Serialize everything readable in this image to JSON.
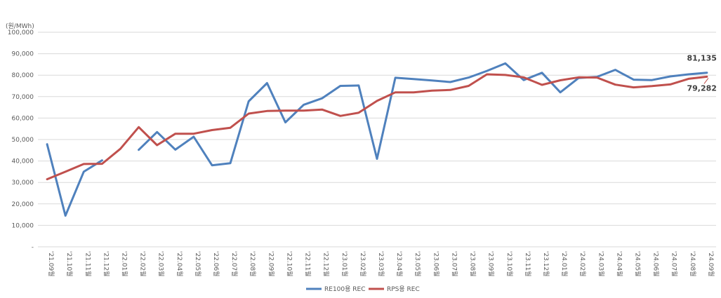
{
  "chart_data": {
    "type": "line",
    "unit_label": "(원/MWh)",
    "x_suffix": "월",
    "x": [
      "'21.09",
      "'21.10",
      "'21.11",
      "'21.12",
      "'22.01",
      "'22.02",
      "'22.03",
      "'22.04",
      "'22.05",
      "'22.06",
      "'22.07",
      "'22.08",
      "'22.09",
      "'22.10",
      "'22.11",
      "'22.12",
      "'23.01",
      "'23.02",
      "'23.03",
      "'23.04",
      "'23.05",
      "'23.06",
      "'23.07",
      "'23.08",
      "'23.09",
      "'23.10",
      "'23.11",
      "'23.12",
      "'24.01",
      "'24.02",
      "'24.03",
      "'24.04",
      "'24.05",
      "'24.06",
      "'24.07",
      "'24.08",
      "'24.09"
    ],
    "ylim": [
      0,
      100000
    ],
    "yticks": [
      "-",
      "10,000",
      "20,000",
      "30,000",
      "40,000",
      "50,000",
      "60,000",
      "70,000",
      "80,000",
      "90,000",
      "100,000"
    ],
    "grid": true,
    "legend_position": "bottom",
    "series": [
      {
        "name": "RE100용 REC",
        "color": "#4f81bd",
        "values": [
          47800,
          14500,
          35000,
          40300,
          null,
          45200,
          53500,
          45300,
          51300,
          38000,
          39000,
          67800,
          76300,
          58000,
          66200,
          69200,
          75000,
          75200,
          41000,
          78800,
          78200,
          77500,
          76800,
          78900,
          82000,
          85500,
          77700,
          81100,
          72000,
          78700,
          79200,
          82500,
          77900,
          77700,
          79400,
          80400,
          81135
        ],
        "end_label": "81,135"
      },
      {
        "name": "RPS용 REC",
        "color": "#c0504d",
        "values": [
          31500,
          35000,
          38600,
          38700,
          45700,
          55800,
          47400,
          52700,
          52700,
          54400,
          55500,
          62100,
          63300,
          63500,
          63500,
          64000,
          61000,
          62500,
          68000,
          72000,
          72000,
          72800,
          73100,
          75000,
          80400,
          80100,
          79000,
          75500,
          77600,
          79000,
          78900,
          75600,
          74300,
          74900,
          75700,
          78300,
          79282
        ],
        "end_label": "79,282"
      }
    ]
  }
}
